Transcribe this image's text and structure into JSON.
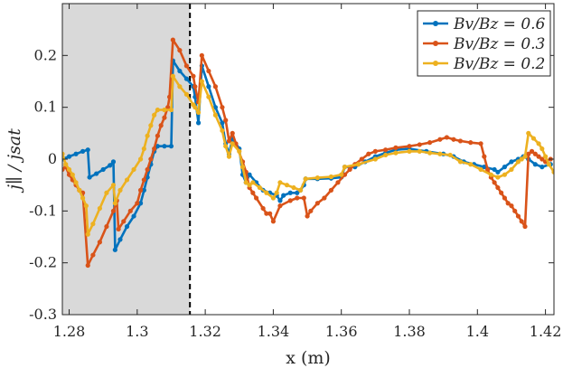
{
  "chart_data": {
    "type": "line",
    "xlabel": "x (m)",
    "ylabel": "j∥ / jsat",
    "xlim": [
      1.278,
      1.4225
    ],
    "ylim": [
      -0.3,
      0.3
    ],
    "xticks": [
      1.28,
      1.3,
      1.32,
      1.34,
      1.36,
      1.38,
      1.4,
      1.42
    ],
    "xtick_labels": [
      "1.28",
      "1.3",
      "1.32",
      "1.34",
      "1.36",
      "1.38",
      "1.4",
      "1.42"
    ],
    "yticks": [
      -0.3,
      -0.2,
      -0.1,
      0,
      0.1,
      0.2
    ],
    "ytick_labels": [
      "-0.3",
      "-0.2",
      "-0.1",
      "0",
      "0.1",
      "0.2"
    ],
    "shaded_region": {
      "x_start": 1.278,
      "x_end": 1.3155,
      "color": "#d9d9d9"
    },
    "dashed_line_x": 1.3155,
    "legend_position": "top-right",
    "series": [
      {
        "name": "Bv/Bz = 0.6",
        "color": "#0072BD",
        "points": [
          [
            1.278,
            0.0
          ],
          [
            1.28,
            0.005
          ],
          [
            1.282,
            0.01
          ],
          [
            1.284,
            0.015
          ],
          [
            1.2855,
            0.018
          ],
          [
            1.286,
            -0.035
          ],
          [
            1.288,
            -0.028
          ],
          [
            1.29,
            -0.02
          ],
          [
            1.292,
            -0.012
          ],
          [
            1.293,
            -0.005
          ],
          [
            1.2935,
            -0.175
          ],
          [
            1.295,
            -0.155
          ],
          [
            1.297,
            -0.13
          ],
          [
            1.299,
            -0.11
          ],
          [
            1.301,
            -0.085
          ],
          [
            1.302,
            -0.06
          ],
          [
            1.303,
            -0.035
          ],
          [
            1.304,
            -0.01
          ],
          [
            1.305,
            0.015
          ],
          [
            1.306,
            0.025
          ],
          [
            1.308,
            0.025
          ],
          [
            1.31,
            0.025
          ],
          [
            1.3105,
            0.19
          ],
          [
            1.3125,
            0.17
          ],
          [
            1.3145,
            0.155
          ],
          [
            1.3165,
            0.14
          ],
          [
            1.317,
            0.12
          ],
          [
            1.318,
            0.07
          ],
          [
            1.319,
            0.18
          ],
          [
            1.321,
            0.14
          ],
          [
            1.323,
            0.1
          ],
          [
            1.325,
            0.07
          ],
          [
            1.326,
            0.03
          ],
          [
            1.327,
            0.01
          ],
          [
            1.328,
            0.04
          ],
          [
            1.33,
            0.02
          ],
          [
            1.331,
            -0.03
          ],
          [
            1.332,
            -0.045
          ],
          [
            1.333,
            -0.03
          ],
          [
            1.335,
            -0.045
          ],
          [
            1.337,
            -0.06
          ],
          [
            1.339,
            -0.065
          ],
          [
            1.341,
            -0.07
          ],
          [
            1.342,
            -0.08
          ],
          [
            1.343,
            -0.07
          ],
          [
            1.345,
            -0.065
          ],
          [
            1.347,
            -0.065
          ],
          [
            1.348,
            -0.06
          ],
          [
            1.349,
            -0.05
          ],
          [
            1.3495,
            -0.038
          ],
          [
            1.353,
            -0.038
          ],
          [
            1.357,
            -0.037
          ],
          [
            1.36,
            -0.035
          ],
          [
            1.361,
            -0.015
          ],
          [
            1.364,
            -0.015
          ],
          [
            1.367,
            -0.005
          ],
          [
            1.37,
            0.005
          ],
          [
            1.373,
            0.012
          ],
          [
            1.376,
            0.018
          ],
          [
            1.38,
            0.02
          ],
          [
            1.385,
            0.015
          ],
          [
            1.39,
            0.01
          ],
          [
            1.393,
            0.005
          ],
          [
            1.396,
            -0.005
          ],
          [
            1.399,
            -0.01
          ],
          [
            1.402,
            -0.015
          ],
          [
            1.405,
            -0.02
          ],
          [
            1.406,
            -0.025
          ],
          [
            1.408,
            -0.015
          ],
          [
            1.41,
            -0.005
          ],
          [
            1.412,
            0.0
          ],
          [
            1.4135,
            0.005
          ],
          [
            1.415,
            0.0
          ],
          [
            1.417,
            -0.01
          ],
          [
            1.419,
            -0.015
          ],
          [
            1.4215,
            -0.01
          ]
        ]
      },
      {
        "name": "Bv/Bz = 0.3",
        "color": "#D95319",
        "points": [
          [
            1.278,
            -0.02
          ],
          [
            1.279,
            -0.015
          ],
          [
            1.28,
            -0.03
          ],
          [
            1.281,
            -0.04
          ],
          [
            1.282,
            -0.05
          ],
          [
            1.283,
            -0.06
          ],
          [
            1.284,
            -0.065
          ],
          [
            1.2855,
            -0.205
          ],
          [
            1.287,
            -0.185
          ],
          [
            1.289,
            -0.16
          ],
          [
            1.291,
            -0.13
          ],
          [
            1.293,
            -0.1
          ],
          [
            1.294,
            -0.08
          ],
          [
            1.2945,
            -0.135
          ],
          [
            1.296,
            -0.12
          ],
          [
            1.298,
            -0.1
          ],
          [
            1.3,
            -0.085
          ],
          [
            1.301,
            -0.06
          ],
          [
            1.302,
            -0.04
          ],
          [
            1.303,
            -0.02
          ],
          [
            1.304,
            0.0
          ],
          [
            1.305,
            0.02
          ],
          [
            1.306,
            0.045
          ],
          [
            1.307,
            0.065
          ],
          [
            1.308,
            0.08
          ],
          [
            1.309,
            0.1
          ],
          [
            1.3095,
            0.12
          ],
          [
            1.3105,
            0.23
          ],
          [
            1.3125,
            0.21
          ],
          [
            1.3145,
            0.18
          ],
          [
            1.3165,
            0.16
          ],
          [
            1.317,
            0.14
          ],
          [
            1.318,
            0.11
          ],
          [
            1.319,
            0.2
          ],
          [
            1.321,
            0.17
          ],
          [
            1.323,
            0.14
          ],
          [
            1.325,
            0.1
          ],
          [
            1.326,
            0.075
          ],
          [
            1.327,
            0.035
          ],
          [
            1.328,
            0.05
          ],
          [
            1.329,
            0.03
          ],
          [
            1.331,
            -0.005
          ],
          [
            1.332,
            -0.025
          ],
          [
            1.333,
            -0.055
          ],
          [
            1.334,
            -0.065
          ],
          [
            1.335,
            -0.075
          ],
          [
            1.337,
            -0.095
          ],
          [
            1.338,
            -0.105
          ],
          [
            1.339,
            -0.105
          ],
          [
            1.34,
            -0.12
          ],
          [
            1.342,
            -0.09
          ],
          [
            1.345,
            -0.08
          ],
          [
            1.347,
            -0.075
          ],
          [
            1.349,
            -0.075
          ],
          [
            1.35,
            -0.11
          ],
          [
            1.351,
            -0.1
          ],
          [
            1.353,
            -0.085
          ],
          [
            1.355,
            -0.075
          ],
          [
            1.357,
            -0.06
          ],
          [
            1.359,
            -0.045
          ],
          [
            1.361,
            -0.03
          ],
          [
            1.3625,
            -0.02
          ],
          [
            1.364,
            -0.01
          ],
          [
            1.366,
            0.0
          ],
          [
            1.368,
            0.01
          ],
          [
            1.37,
            0.015
          ],
          [
            1.373,
            0.018
          ],
          [
            1.376,
            0.022
          ],
          [
            1.38,
            0.025
          ],
          [
            1.383,
            0.028
          ],
          [
            1.386,
            0.032
          ],
          [
            1.389,
            0.038
          ],
          [
            1.391,
            0.042
          ],
          [
            1.393,
            0.038
          ],
          [
            1.395,
            0.035
          ],
          [
            1.398,
            0.032
          ],
          [
            1.401,
            0.03
          ],
          [
            1.402,
            0.005
          ],
          [
            1.403,
            -0.02
          ],
          [
            1.404,
            -0.035
          ],
          [
            1.405,
            -0.045
          ],
          [
            1.406,
            -0.055
          ],
          [
            1.407,
            -0.065
          ],
          [
            1.408,
            -0.075
          ],
          [
            1.409,
            -0.085
          ],
          [
            1.41,
            -0.09
          ],
          [
            1.411,
            -0.1
          ],
          [
            1.412,
            -0.11
          ],
          [
            1.413,
            -0.12
          ],
          [
            1.414,
            -0.13
          ],
          [
            1.415,
            0.01
          ],
          [
            1.416,
            0.015
          ],
          [
            1.417,
            0.01
          ],
          [
            1.418,
            0.005
          ],
          [
            1.419,
            0.0
          ],
          [
            1.42,
            -0.005
          ],
          [
            1.4215,
            0.0
          ]
        ]
      },
      {
        "name": "Bv/Bz = 0.2",
        "color": "#EDB120",
        "points": [
          [
            1.278,
            0.01
          ],
          [
            1.279,
            -0.01
          ],
          [
            1.28,
            -0.02
          ],
          [
            1.281,
            -0.03
          ],
          [
            1.282,
            -0.045
          ],
          [
            1.283,
            -0.06
          ],
          [
            1.284,
            -0.075
          ],
          [
            1.285,
            -0.09
          ],
          [
            1.2855,
            -0.145
          ],
          [
            1.287,
            -0.125
          ],
          [
            1.289,
            -0.095
          ],
          [
            1.291,
            -0.065
          ],
          [
            1.293,
            -0.05
          ],
          [
            1.2935,
            -0.085
          ],
          [
            1.295,
            -0.06
          ],
          [
            1.297,
            -0.04
          ],
          [
            1.299,
            -0.02
          ],
          [
            1.301,
            0.0
          ],
          [
            1.302,
            0.02
          ],
          [
            1.303,
            0.045
          ],
          [
            1.304,
            0.065
          ],
          [
            1.305,
            0.085
          ],
          [
            1.306,
            0.095
          ],
          [
            1.308,
            0.095
          ],
          [
            1.31,
            0.095
          ],
          [
            1.3105,
            0.16
          ],
          [
            1.3125,
            0.14
          ],
          [
            1.3145,
            0.125
          ],
          [
            1.3165,
            0.105
          ],
          [
            1.317,
            0.1
          ],
          [
            1.318,
            0.09
          ],
          [
            1.319,
            0.15
          ],
          [
            1.321,
            0.12
          ],
          [
            1.323,
            0.085
          ],
          [
            1.325,
            0.055
          ],
          [
            1.326,
            0.025
          ],
          [
            1.327,
            0.005
          ],
          [
            1.328,
            0.03
          ],
          [
            1.33,
            0.015
          ],
          [
            1.331,
            -0.015
          ],
          [
            1.332,
            -0.045
          ],
          [
            1.333,
            -0.05
          ],
          [
            1.334,
            -0.045
          ],
          [
            1.336,
            -0.055
          ],
          [
            1.338,
            -0.065
          ],
          [
            1.34,
            -0.075
          ],
          [
            1.341,
            -0.065
          ],
          [
            1.342,
            -0.045
          ],
          [
            1.344,
            -0.05
          ],
          [
            1.346,
            -0.055
          ],
          [
            1.348,
            -0.06
          ],
          [
            1.3495,
            -0.038
          ],
          [
            1.353,
            -0.036
          ],
          [
            1.357,
            -0.034
          ],
          [
            1.36,
            -0.03
          ],
          [
            1.361,
            -0.015
          ],
          [
            1.365,
            -0.01
          ],
          [
            1.37,
            0.0
          ],
          [
            1.373,
            0.008
          ],
          [
            1.376,
            0.012
          ],
          [
            1.38,
            0.015
          ],
          [
            1.383,
            0.015
          ],
          [
            1.386,
            0.012
          ],
          [
            1.389,
            0.01
          ],
          [
            1.392,
            0.008
          ],
          [
            1.395,
            -0.005
          ],
          [
            1.398,
            -0.01
          ],
          [
            1.401,
            -0.02
          ],
          [
            1.404,
            -0.03
          ],
          [
            1.406,
            -0.035
          ],
          [
            1.408,
            -0.03
          ],
          [
            1.41,
            -0.02
          ],
          [
            1.412,
            -0.005
          ],
          [
            1.413,
            0.0
          ],
          [
            1.414,
            0.005
          ],
          [
            1.415,
            0.05
          ],
          [
            1.4165,
            0.04
          ],
          [
            1.418,
            0.03
          ],
          [
            1.419,
            0.02
          ],
          [
            1.42,
            0.005
          ],
          [
            1.421,
            -0.01
          ],
          [
            1.4225,
            -0.025
          ]
        ]
      }
    ]
  },
  "legend": {
    "items": [
      {
        "lhs": "Bv/Bz",
        "rhs": "= 0.6",
        "color": "#0072BD"
      },
      {
        "lhs": "Bv/Bz",
        "rhs": "= 0.3",
        "color": "#D95319"
      },
      {
        "lhs": "Bv/Bz",
        "rhs": "= 0.2",
        "color": "#EDB120"
      }
    ]
  }
}
